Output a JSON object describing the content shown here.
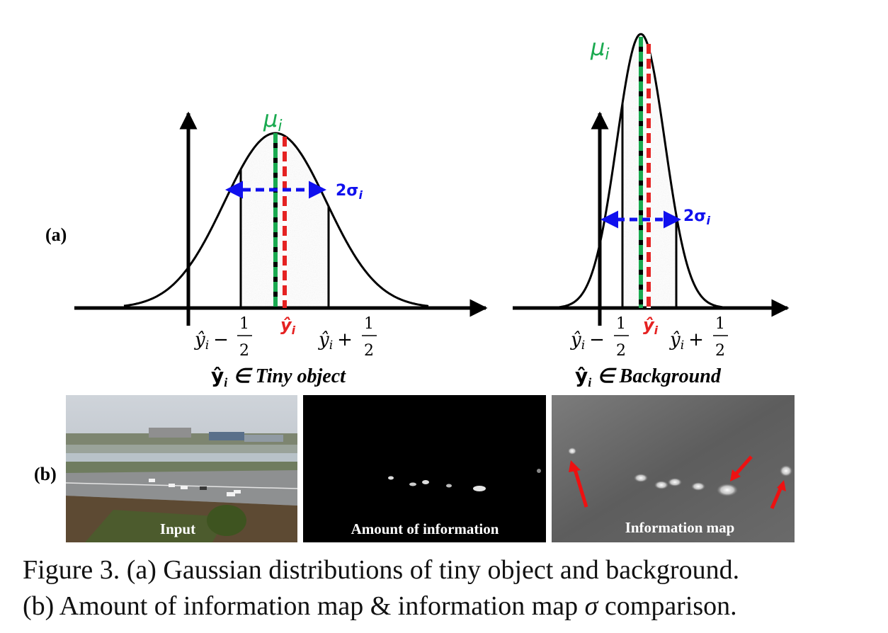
{
  "panel_a": {
    "label": "(a)",
    "tiny": {
      "mu_label": "μ",
      "mu_sub": "i",
      "sigma_label": "2σ",
      "sigma_sub": "i",
      "left_tick_var": "ŷ",
      "left_tick_sub": "i",
      "left_tick_op": "−",
      "yhat_var": "ŷ",
      "yhat_sub": "i",
      "right_tick_var": "ŷ",
      "right_tick_sub": "i",
      "right_tick_op": "+",
      "frac_num": "1",
      "frac_den": "2",
      "subtitle_var": "ŷ",
      "subtitle_sub": "i",
      "subtitle_text": "∈ Tiny object"
    },
    "background": {
      "mu_label": "μ",
      "mu_sub": "i",
      "sigma_label": "2σ",
      "sigma_sub": "i",
      "left_tick_var": "ŷ",
      "left_tick_sub": "i",
      "left_tick_op": "−",
      "yhat_var": "ŷ",
      "yhat_sub": "i",
      "right_tick_var": "ŷ",
      "right_tick_sub": "i",
      "right_tick_op": "+",
      "frac_num": "1",
      "frac_den": "2",
      "subtitle_var": "ŷ",
      "subtitle_sub": "i",
      "subtitle_text": "∈ Background"
    }
  },
  "panel_b": {
    "label": "(b)",
    "images": [
      {
        "caption": "Input"
      },
      {
        "caption": "Amount of information"
      },
      {
        "caption": "Information map"
      }
    ]
  },
  "caption": {
    "line1": "Figure 3. (a) Gaussian distributions of tiny object and background.",
    "line2_before": "(b) Amount of information map & information map ",
    "line2_sigma": "σ",
    "line2_after": " comparison."
  },
  "colors": {
    "mu": "#1aaa50",
    "yhat": "#e52222",
    "sigma": "#1010ee",
    "axis": "#000000",
    "fill": "#e9e9e9"
  }
}
